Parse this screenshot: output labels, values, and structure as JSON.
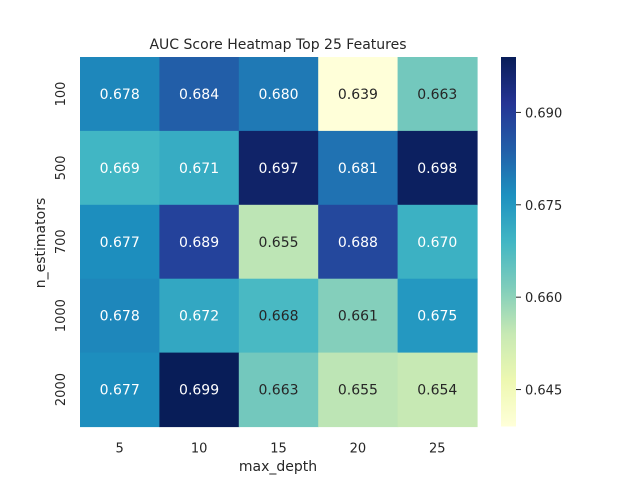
{
  "chart_data": {
    "type": "heatmap",
    "title": "AUC Score Heatmap Top 25 Features",
    "xlabel": "max_depth",
    "ylabel": "n_estimators",
    "x_categories": [
      "5",
      "10",
      "15",
      "20",
      "25"
    ],
    "y_categories": [
      "100",
      "500",
      "700",
      "1000",
      "2000"
    ],
    "values": [
      [
        0.678,
        0.684,
        0.68,
        0.639,
        0.663
      ],
      [
        0.669,
        0.671,
        0.697,
        0.681,
        0.698
      ],
      [
        0.677,
        0.689,
        0.655,
        0.688,
        0.67
      ],
      [
        0.678,
        0.672,
        0.668,
        0.661,
        0.675
      ],
      [
        0.677,
        0.699,
        0.663,
        0.655,
        0.654
      ]
    ],
    "colormap": "YlGnBu",
    "vmin": 0.639,
    "vmax": 0.699,
    "colorbar_ticks": [
      "0.645",
      "0.660",
      "0.675",
      "0.690"
    ],
    "annotation_colors": {
      "dark": "#262626",
      "light": "#ffffff"
    },
    "grid": false,
    "legend": "colorbar-right"
  }
}
